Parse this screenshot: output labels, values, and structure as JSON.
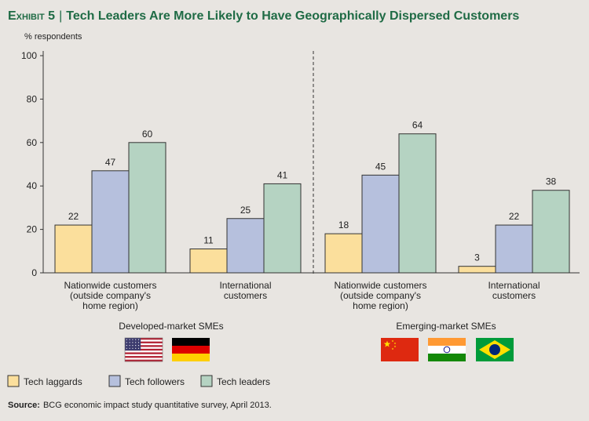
{
  "header": {
    "exhibit_label": "Exhibit 5",
    "separator": "|",
    "title": "Tech Leaders Are More Likely to Have Geographically Dispersed Customers"
  },
  "source": {
    "label": "Source:",
    "text": "BCG economic impact study quantitative survey, April 2013."
  },
  "colors": {
    "background": "#e8e5e1",
    "title": "#1f6b45",
    "tech_laggards": "#fbdf9c",
    "tech_followers": "#b6c0dd",
    "tech_leaders": "#b5d3c2",
    "bar_stroke": "#333333"
  },
  "chart_data": {
    "type": "bar",
    "ylabel": "% respondents",
    "ylim": [
      0,
      100
    ],
    "yticks": [
      0,
      20,
      40,
      60,
      80,
      100
    ],
    "grid": false,
    "series": [
      {
        "name": "Tech laggards",
        "color_key": "tech_laggards"
      },
      {
        "name": "Tech followers",
        "color_key": "tech_followers"
      },
      {
        "name": "Tech leaders",
        "color_key": "tech_leaders"
      }
    ],
    "panels": [
      {
        "name": "Developed-market SMEs",
        "flags": [
          "us-flag",
          "germany-flag"
        ],
        "groups": [
          {
            "label": [
              "Nationwide customers",
              "(outside company's",
              "home region)"
            ],
            "values": [
              22,
              47,
              60
            ]
          },
          {
            "label": [
              "International",
              "customers"
            ],
            "values": [
              11,
              25,
              41
            ]
          }
        ]
      },
      {
        "name": "Emerging-market SMEs",
        "flags": [
          "china-flag",
          "india-flag",
          "brazil-flag"
        ],
        "groups": [
          {
            "label": [
              "Nationwide customers",
              "(outside company's",
              "home region)"
            ],
            "values": [
              18,
              45,
              64
            ]
          },
          {
            "label": [
              "International",
              "customers"
            ],
            "values": [
              3,
              22,
              38
            ]
          }
        ]
      }
    ]
  }
}
